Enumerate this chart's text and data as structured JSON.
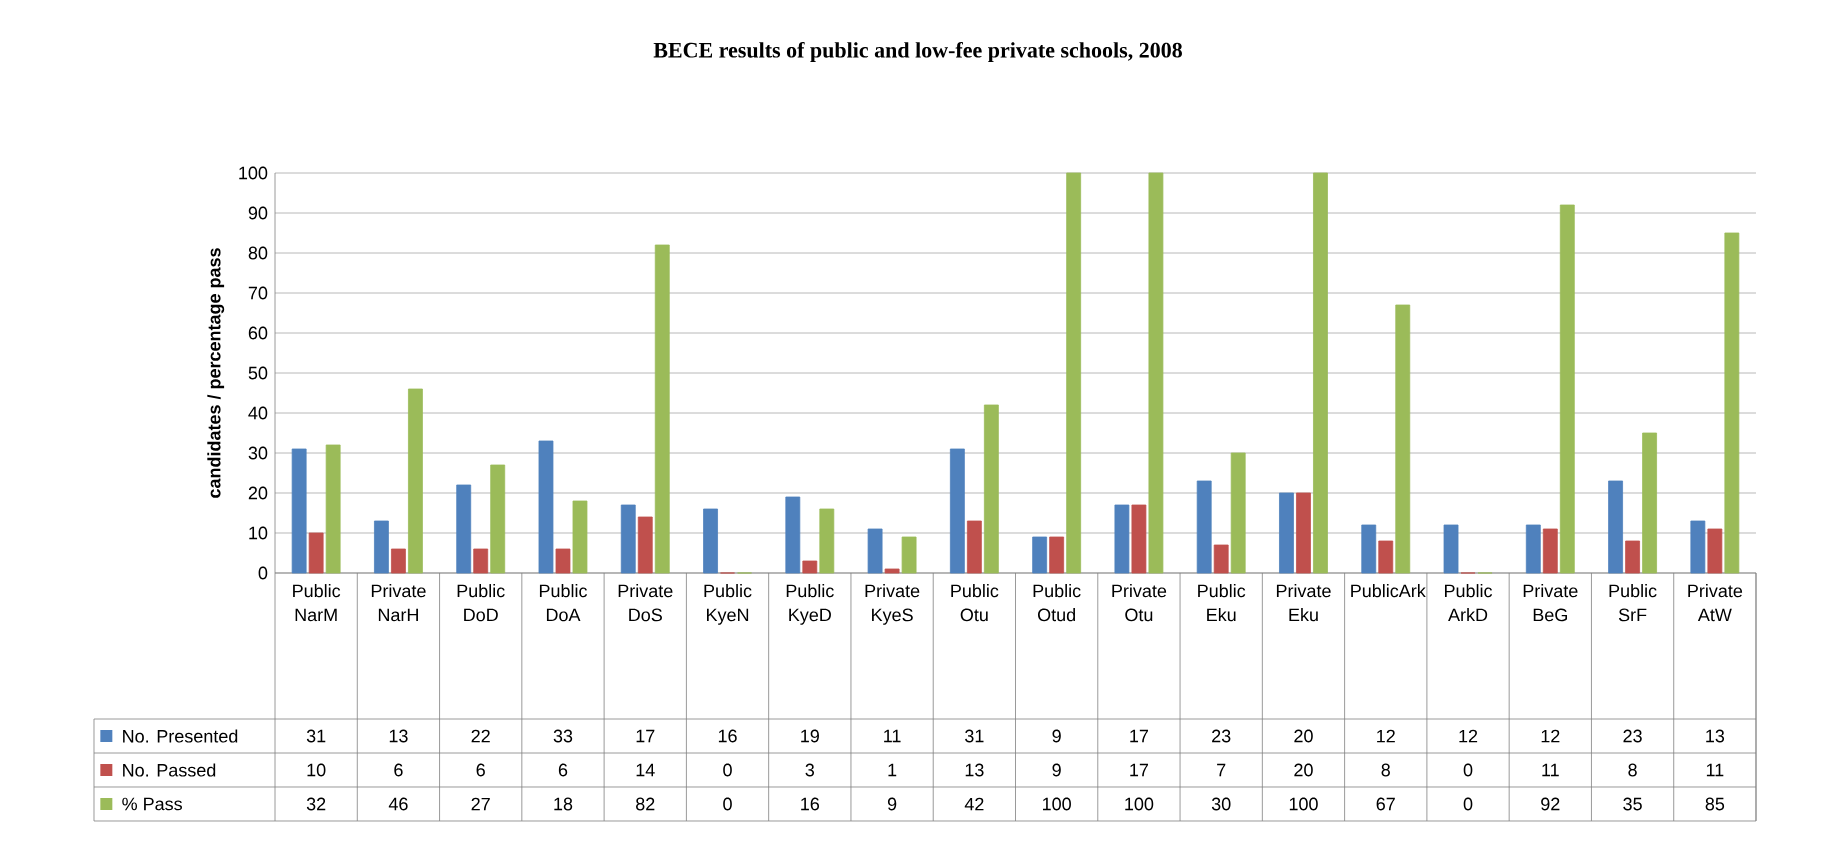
{
  "chart_data": {
    "type": "bar",
    "title": "BECE results of public and low-fee private schools, 2008",
    "ylabel": "candidates / percentage pass",
    "categories": [
      "Public NarM",
      "Private NarH",
      "Public DoD",
      "Public DoA",
      "Private DoS",
      "Public KyeN",
      "Public KyeD",
      "Private KyeS",
      "Public Otu",
      "Public Otud",
      "Private Otu",
      "Public Eku",
      "Private Eku",
      "PublicArk",
      "Public ArkD",
      "Private BeG",
      "Public SrF",
      "Private AtW"
    ],
    "series": [
      {
        "name": "No. Presented",
        "color": "#4f81bd",
        "values": [
          31,
          13,
          22,
          33,
          17,
          16,
          19,
          11,
          31,
          9,
          17,
          23,
          20,
          12,
          12,
          12,
          23,
          13
        ]
      },
      {
        "name": "No. Passed",
        "color": "#c0504d",
        "values": [
          10,
          6,
          6,
          6,
          14,
          0,
          3,
          1,
          13,
          9,
          17,
          7,
          20,
          8,
          0,
          11,
          8,
          11
        ]
      },
      {
        "name": "% Pass",
        "color": "#9bbb59",
        "values": [
          32,
          46,
          27,
          18,
          82,
          0,
          16,
          9,
          42,
          100,
          100,
          30,
          100,
          67,
          0,
          92,
          35,
          85
        ]
      }
    ],
    "ylim": [
      0,
      100
    ],
    "yticks": [
      0,
      10,
      20,
      30,
      40,
      50,
      60,
      70,
      80,
      90,
      100
    ],
    "grid": "y",
    "legend": "bottom",
    "data_labels": true
  }
}
